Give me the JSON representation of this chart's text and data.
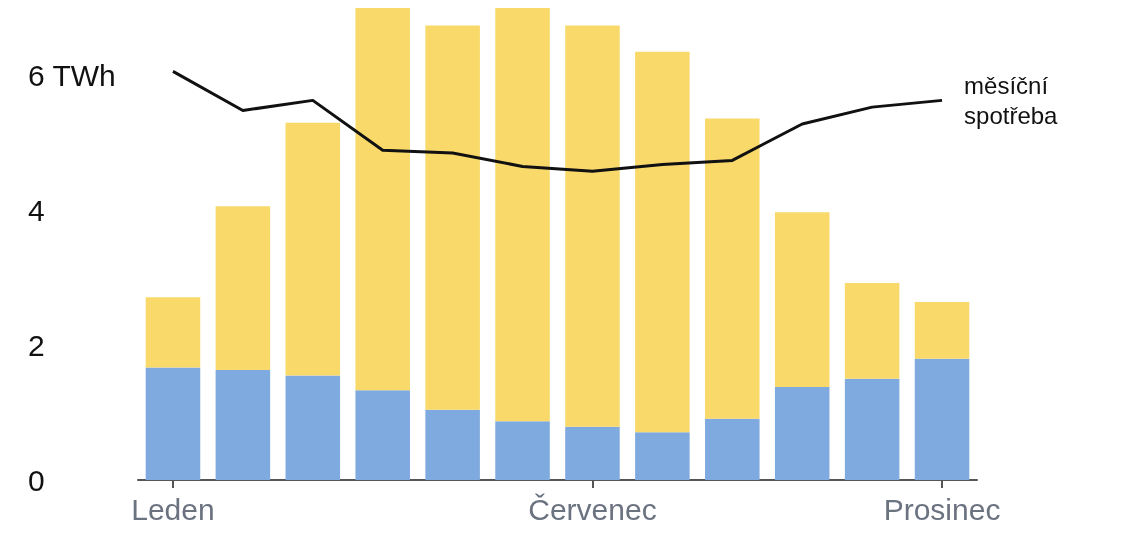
{
  "chart_data": {
    "type": "bar",
    "stacked": true,
    "categories": [
      "Leden",
      null,
      null,
      null,
      null,
      null,
      "Červenec",
      null,
      null,
      null,
      null,
      "Prosinec"
    ],
    "series": [
      {
        "color": "#7eaadf",
        "values": [
          1.67,
          1.63,
          1.55,
          1.33,
          1.04,
          0.87,
          0.79,
          0.71,
          0.91,
          1.38,
          1.5,
          1.8
        ]
      },
      {
        "color": "#f9d96a",
        "values": [
          1.04,
          2.43,
          3.75,
          5.67,
          5.7,
          6.13,
          5.95,
          5.64,
          4.45,
          2.59,
          1.42,
          0.84
        ]
      },
      {
        "type": "line",
        "name": "měsíční spotřeba",
        "color": "#111111",
        "values": [
          6.06,
          5.48,
          5.63,
          4.89,
          4.85,
          4.65,
          4.58,
          4.68,
          4.74,
          5.28,
          5.53,
          5.63
        ]
      }
    ],
    "ylim": [
      0,
      7
    ],
    "yticks": [
      0,
      2,
      4,
      {
        "value": 6,
        "label": "6 TWh"
      }
    ],
    "grid": false,
    "legend": false,
    "marker": "none",
    "line_style": "solid"
  }
}
